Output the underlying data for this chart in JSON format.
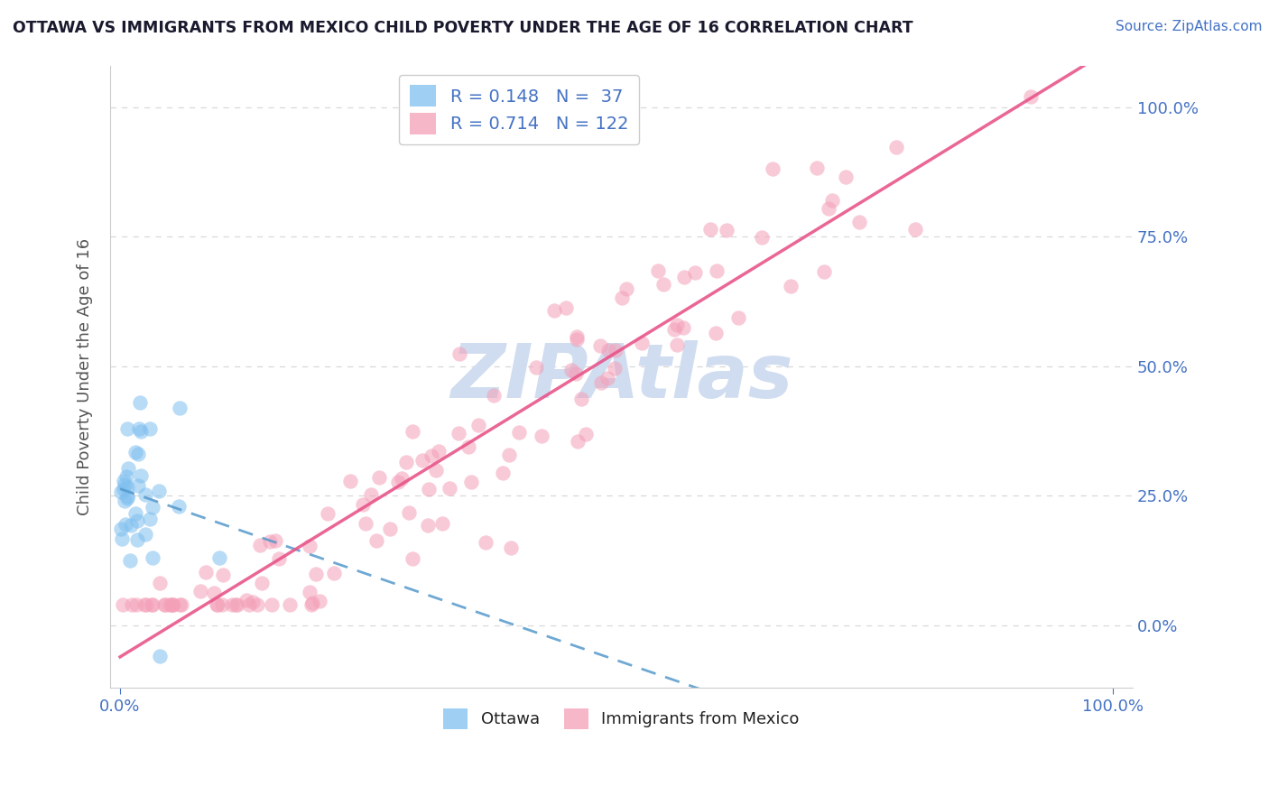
{
  "title": "OTTAWA VS IMMIGRANTS FROM MEXICO CHILD POVERTY UNDER THE AGE OF 16 CORRELATION CHART",
  "source": "Source: ZipAtlas.com",
  "ylabel": "Child Poverty Under the Age of 16",
  "ytick_positions": [
    0.0,
    0.25,
    0.5,
    0.75,
    1.0
  ],
  "ytick_labels": [
    "0.0%",
    "25.0%",
    "50.0%",
    "75.0%",
    "100.0%"
  ],
  "xtick_labels": [
    "0.0%",
    "100.0%"
  ],
  "watermark": "ZIPAtlas",
  "watermark_color": "#d0ddf0",
  "ottawa_color": "#7fbfef",
  "mexico_color": "#f4a0b8",
  "ottawa_R": 0.148,
  "ottawa_N": 37,
  "mexico_R": 0.714,
  "mexico_N": 122,
  "title_color": "#1a1a2e",
  "source_color": "#4472c4",
  "axis_label_color": "#555555",
  "tick_color": "#4472c4",
  "grid_color": "#d8d8d8",
  "background_color": "#ffffff",
  "regression_ottawa_color": "#5599cc",
  "regression_mexico_color": "#e8558a",
  "legend_label_color": "#4472c4",
  "bottom_legend_color": "#222222",
  "xlim": [
    -0.01,
    1.02
  ],
  "ylim": [
    -0.12,
    1.08
  ]
}
